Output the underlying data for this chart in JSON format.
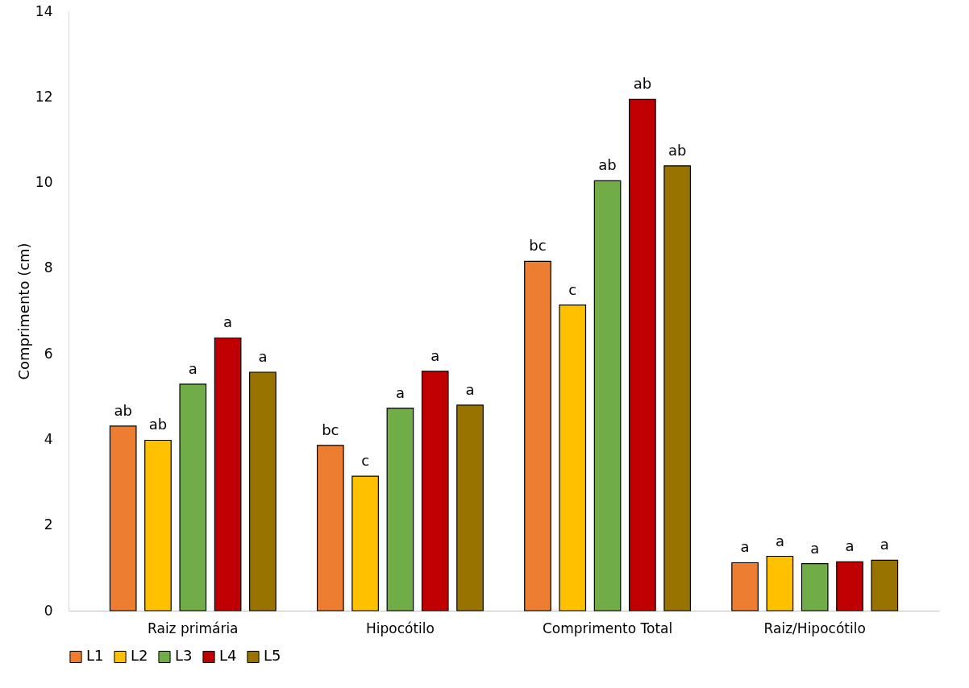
{
  "chart_data": {
    "type": "bar",
    "ylabel": "Comprimento (cm)",
    "categories": [
      "Raiz primária",
      "Hipocótilo",
      "Comprimento Total",
      "Raiz/Hipocótilo"
    ],
    "series": [
      {
        "name": "L1",
        "color": "#ed7d31",
        "values": [
          4.31,
          3.86,
          8.16,
          1.12
        ],
        "value_labels": [
          "ab",
          "bc",
          "bc",
          "a"
        ]
      },
      {
        "name": "L2",
        "color": "#ffc000",
        "values": [
          3.98,
          3.14,
          7.14,
          1.27
        ],
        "value_labels": [
          "ab",
          "c",
          "c",
          "a"
        ]
      },
      {
        "name": "L3",
        "color": "#70ad47",
        "values": [
          5.29,
          4.73,
          10.04,
          1.1
        ],
        "value_labels": [
          "a",
          "a",
          "ab",
          "a"
        ]
      },
      {
        "name": "L4",
        "color": "#c00000",
        "values": [
          6.37,
          5.59,
          11.94,
          1.14
        ],
        "value_labels": [
          "a",
          "a",
          "ab",
          "a"
        ]
      },
      {
        "name": "L5",
        "color": "#997300",
        "values": [
          5.57,
          4.8,
          10.39,
          1.18
        ],
        "value_labels": [
          "a",
          "a",
          "ab",
          "a"
        ]
      }
    ],
    "ylim": [
      0,
      14
    ],
    "yticks": [
      0,
      2,
      4,
      6,
      8,
      10,
      12,
      14
    ],
    "grid": false,
    "legend": "bottom"
  }
}
